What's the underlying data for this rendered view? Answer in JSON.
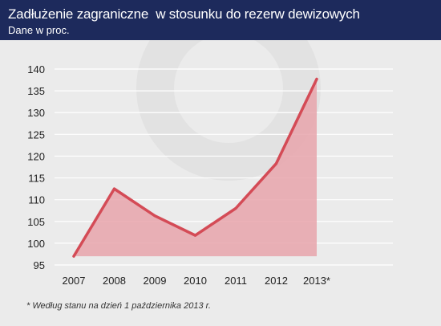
{
  "header": {
    "title": "Zadłużenie zagraniczne  w stosunku do rezerw dewizowych",
    "subtitle": "Dane w proc."
  },
  "chart_data": {
    "type": "area",
    "title": "Zadłużenie zagraniczne  w stosunku do rezerw dewizowych",
    "subtitle": "Dane w proc.",
    "categories": [
      "2007",
      "2008",
      "2009",
      "2010",
      "2011",
      "2012",
      "2013*"
    ],
    "values": [
      97,
      112.5,
      106.3,
      101.8,
      108,
      118.3,
      137.7
    ],
    "ylim": [
      95,
      140
    ],
    "yticks": [
      95,
      100,
      105,
      110,
      115,
      120,
      125,
      130,
      135,
      140
    ],
    "grid": true,
    "legend": "none",
    "colors": {
      "line": "#d44b56",
      "fill": "#e8a5ab",
      "grid": "#ffffff",
      "text": "#222222"
    }
  },
  "footnote": "* Według stanu na dzień 1 października 2013 r."
}
